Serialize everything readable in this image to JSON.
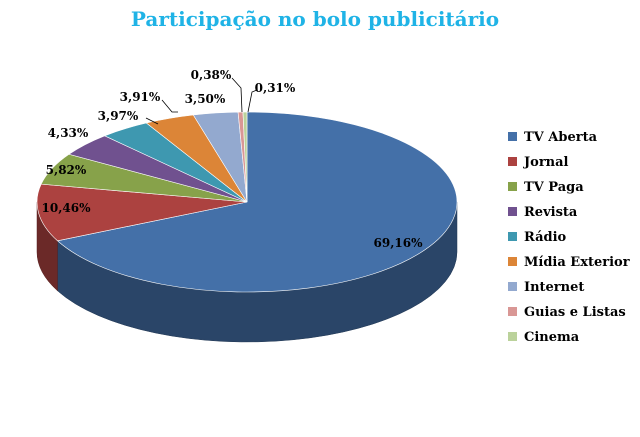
{
  "chart_data": {
    "type": "pie",
    "title": "Participação no bolo publicitário",
    "categories": [
      "TV Aberta",
      "Jornal",
      "TV Paga",
      "Revista",
      "Rádio",
      "Mídia Exterior",
      "Internet",
      "Guias e Listas",
      "Cinema"
    ],
    "values": [
      69.16,
      10.46,
      5.82,
      4.33,
      3.97,
      3.91,
      3.5,
      0.38,
      0.31
    ],
    "data_labels": [
      "69,16%",
      "10,46%",
      "5,82%",
      "4,33%",
      "3,97%",
      "3,91%",
      "3,50%",
      "0,38%",
      "0,31%"
    ],
    "colors": [
      "#4470a8",
      "#ac4240",
      "#87a24a",
      "#70518f",
      "#3e98b0",
      "#dc8537",
      "#93a9cf",
      "#d99795",
      "#bbd29b"
    ],
    "legend_position": "right",
    "style": "3d-pie"
  }
}
